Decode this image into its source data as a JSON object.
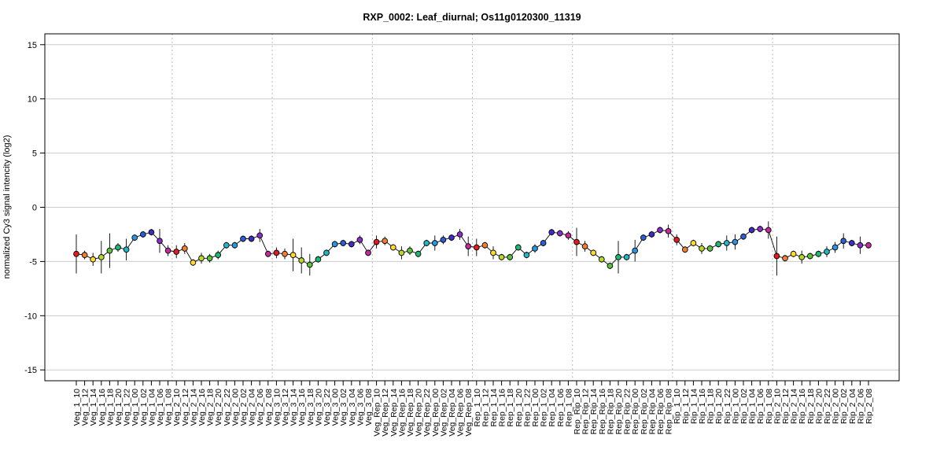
{
  "chart_data": {
    "type": "line",
    "title": "RXP_0002: Leaf_diurnal; Os11g0120300_11319",
    "xlabel": "",
    "ylabel": "normalized Cy3 signal intencity (log2)",
    "ylim": [
      -16,
      16
    ],
    "yticks": [
      -15,
      -10,
      -5,
      0,
      5,
      10,
      15
    ],
    "grid": true,
    "categories": [
      "Veg_1_10",
      "Veg_1_12",
      "Veg_1_14",
      "Veg_1_16",
      "Veg_1_18",
      "Veg_1_20",
      "Veg_1_22",
      "Veg_1_00",
      "Veg_1_02",
      "Veg_1_04",
      "Veg_1_06",
      "Veg_1_08",
      "Veg_2_10",
      "Veg_2_12",
      "Veg_2_14",
      "Veg_2_16",
      "Veg_2_18",
      "Veg_2_20",
      "Veg_2_22",
      "Veg_2_00",
      "Veg_2_02",
      "Veg_2_04",
      "Veg_2_06",
      "Veg_2_08",
      "Veg_3_10",
      "Veg_3_12",
      "Veg_3_14",
      "Veg_3_16",
      "Veg_3_18",
      "Veg_3_20",
      "Veg_3_22",
      "Veg_3_00",
      "Veg_3_02",
      "Veg_3_04",
      "Veg_3_06",
      "Veg_3_08",
      "Veg_Rep_10",
      "Veg_Rep_12",
      "Veg_Rep_14",
      "Veg_Rep_16",
      "Veg_Rep_18",
      "Veg_Rep_20",
      "Veg_Rep_22",
      "Veg_Rep_00",
      "Veg_Rep_02",
      "Veg_Rep_04",
      "Veg_Rep_06",
      "Veg_Rep_08",
      "Rep_1_10",
      "Rep_1_12",
      "Rep_1_14",
      "Rep_1_16",
      "Rep_1_18",
      "Rep_1_20",
      "Rep_1_22",
      "Rep_1_00",
      "Rep_1_02",
      "Rep_1_04",
      "Rep_1_06",
      "Rep_1_08",
      "Rep_Rip_10",
      "Rep_Rip_12",
      "Rep_Rip_14",
      "Rep_Rip_16",
      "Rep_Rip_18",
      "Rep_Rip_20",
      "Rep_Rip_22",
      "Rep_Rip_00",
      "Rep_Rip_02",
      "Rep_Rip_04",
      "Rep_Rip_06",
      "Rep_Rip_08",
      "Rip_1_10",
      "Rip_1_12",
      "Rip_1_14",
      "Rip_1_16",
      "Rip_1_18",
      "Rip_1_20",
      "Rip_1_22",
      "Rip_1_00",
      "Rip_1_02",
      "Rip_1_04",
      "Rip_1_06",
      "Rip_1_08",
      "Rip_2_10",
      "Rip_2_12",
      "Rip_2_14",
      "Rip_2_16",
      "Rip_2_18",
      "Rip_2_20",
      "Rip_2_22",
      "Rip_2_00",
      "Rip_2_02",
      "Rip_2_04",
      "Rip_2_06",
      "Rip_2_08"
    ],
    "values": [
      -4.3,
      -4.4,
      -4.8,
      -4.6,
      -4.0,
      -3.7,
      -3.9,
      -2.8,
      -2.5,
      -2.3,
      -3.1,
      -4.0,
      -4.1,
      -3.8,
      -5.1,
      -4.7,
      -4.7,
      -4.4,
      -3.5,
      -3.5,
      -2.9,
      -2.9,
      -2.6,
      -4.3,
      -4.2,
      -4.3,
      -4.4,
      -4.9,
      -5.3,
      -4.8,
      -4.2,
      -3.4,
      -3.3,
      -3.4,
      -3.0,
      -4.2,
      -3.2,
      -3.1,
      -3.7,
      -4.2,
      -4.0,
      -4.3,
      -3.3,
      -3.3,
      -3.0,
      -2.8,
      -2.5,
      -3.6,
      -3.7,
      -3.5,
      -4.2,
      -4.6,
      -4.6,
      -3.7,
      -4.4,
      -3.8,
      -3.3,
      -2.3,
      -2.4,
      -2.6,
      -3.2,
      -3.6,
      -4.2,
      -4.8,
      -5.4,
      -4.6,
      -4.6,
      -4.0,
      -2.8,
      -2.5,
      -2.1,
      -2.2,
      -3.0,
      -3.9,
      -3.3,
      -3.8,
      -3.8,
      -3.4,
      -3.3,
      -3.2,
      -2.7,
      -2.1,
      -2.0,
      -2.1,
      -4.5,
      -4.7,
      -4.3,
      -4.6,
      -4.5,
      -4.3,
      -4.1,
      -3.7,
      -3.1,
      -3.3,
      -3.5,
      -3.5
    ],
    "error_bars": [
      1.8,
      0.4,
      0.6,
      1.5,
      1.6,
      0.4,
      1.0,
      0.3,
      0.3,
      0.3,
      1.1,
      0.5,
      0.6,
      0.5,
      0.3,
      0.5,
      0.4,
      0.4,
      0.3,
      0.3,
      0.3,
      0.3,
      0.6,
      0.3,
      0.5,
      0.5,
      1.5,
      1.2,
      1.0,
      0.3,
      0.3,
      0.3,
      0.3,
      0.3,
      0.4,
      0.3,
      0.6,
      0.4,
      0.3,
      0.6,
      0.4,
      0.3,
      0.3,
      0.7,
      0.4,
      0.3,
      0.5,
      0.9,
      0.8,
      0.3,
      0.6,
      0.3,
      0.3,
      0.3,
      0.3,
      0.4,
      0.3,
      0.3,
      0.3,
      0.4,
      1.3,
      0.5,
      0.3,
      0.3,
      0.3,
      1.5,
      0.3,
      1.0,
      0.3,
      0.3,
      0.3,
      0.6,
      0.5,
      0.3,
      0.3,
      0.5,
      0.3,
      0.3,
      0.7,
      0.7,
      0.3,
      0.3,
      0.3,
      0.8,
      1.8,
      0.3,
      0.3,
      0.6,
      0.3,
      0.3,
      0.5,
      0.5,
      0.7,
      0.3,
      0.8,
      0.3
    ],
    "point_colors": [
      "#e41a1c",
      "#f08030",
      "#ffd92f",
      "#b6d828",
      "#5cc33a",
      "#1db874",
      "#1fb6c8",
      "#2a95e0",
      "#2a5fd6",
      "#3d2cc8",
      "#8a2ec8",
      "#c42a9a"
    ],
    "group_separators_after": [
      11,
      23,
      35,
      47,
      59,
      71,
      83
    ],
    "colors": {
      "line": "#000000",
      "grid": "#cccccc",
      "separator": "#bbbbbb"
    }
  }
}
